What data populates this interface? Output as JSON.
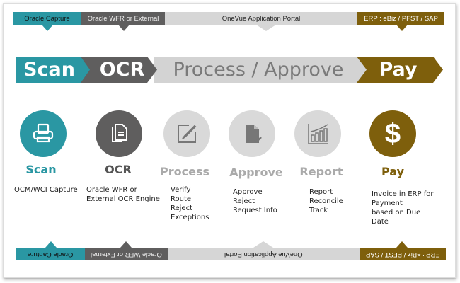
{
  "colors": {
    "scan": "#2a97a3",
    "ocr": "#5f5e5e",
    "process": "#d3d3d3",
    "pay": "#7e5f0c"
  },
  "systems": [
    {
      "label": "Oracle Capture"
    },
    {
      "label": "Oracle WFR or External"
    },
    {
      "label": "OneVue Application Portal"
    },
    {
      "label": "ERP : eBiz / PFST / SAP"
    }
  ],
  "phases": [
    {
      "label": "Scan"
    },
    {
      "label": "OCR"
    },
    {
      "label": "Process / Approve"
    },
    {
      "label": "Pay"
    }
  ],
  "steps": [
    {
      "title": "Scan",
      "icon": "printer-icon",
      "desc": "OCM/WCI Capture"
    },
    {
      "title": "OCR",
      "icon": "documents-icon",
      "desc": "Oracle WFR or\nExternal OCR Engine"
    },
    {
      "title": "Process",
      "icon": "edit-icon",
      "desc": "Verify\nRoute\nReject\nExceptions"
    },
    {
      "title": "Approve",
      "icon": "document-check-icon",
      "desc": "Approve\nReject\nRequest Info"
    },
    {
      "title": "Report",
      "icon": "bar-chart-icon",
      "desc": "Report\nReconcile\nTrack"
    },
    {
      "title": "Pay",
      "icon": "dollar-icon",
      "desc": "Invoice in ERP for\nPayment\nbased on Due\nDate"
    }
  ]
}
